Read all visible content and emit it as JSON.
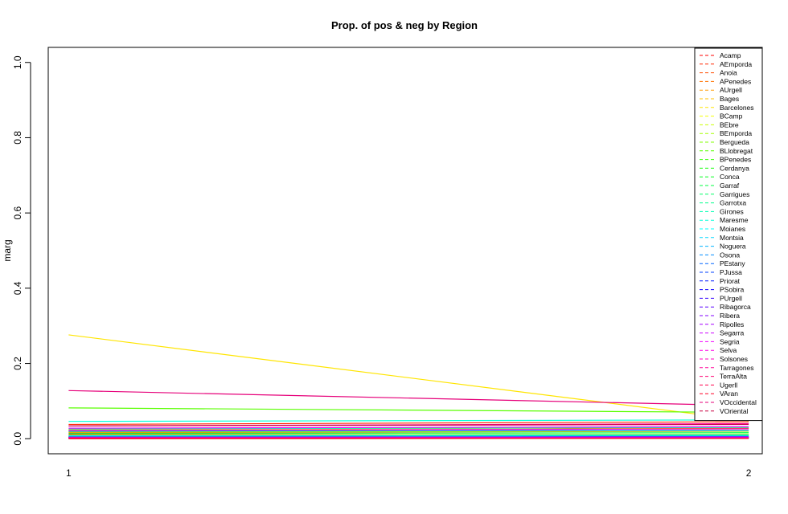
{
  "chart_data": {
    "type": "line",
    "title": "Prop. of pos & neg by Region",
    "xlabel": "",
    "ylabel": "marg",
    "x": [
      1,
      2
    ],
    "x_ticks": [
      "1",
      "2"
    ],
    "y_ticks": [
      "0.0",
      "0.2",
      "0.4",
      "0.6",
      "0.8",
      "1.0"
    ],
    "xlim": [
      0.97,
      2.02
    ],
    "ylim": [
      -0.04,
      1.04
    ],
    "legend_position": "top-right",
    "line_style": "solid",
    "series": [
      {
        "name": "Acamp",
        "color": "#FF0000",
        "values": [
          0.012,
          0.01
        ]
      },
      {
        "name": "AEmporda",
        "color": "#FF2600",
        "values": [
          0.038,
          0.045
        ]
      },
      {
        "name": "Anoia",
        "color": "#FF4D00",
        "values": [
          0.02,
          0.028
        ]
      },
      {
        "name": "APenedes",
        "color": "#FF7300",
        "values": [
          0.016,
          0.02
        ]
      },
      {
        "name": "AUrgell",
        "color": "#FF9900",
        "values": [
          0.006,
          0.008
        ]
      },
      {
        "name": "Bages",
        "color": "#FFBF00",
        "values": [
          0.024,
          0.03
        ]
      },
      {
        "name": "Barcelones",
        "color": "#FFE500",
        "values": [
          0.276,
          0.048
        ]
      },
      {
        "name": "BCamp",
        "color": "#F2FF00",
        "values": [
          0.022,
          0.026
        ]
      },
      {
        "name": "BEbre",
        "color": "#CCFF00",
        "values": [
          0.01,
          0.012
        ]
      },
      {
        "name": "BEmporda",
        "color": "#A6FF00",
        "values": [
          0.018,
          0.02
        ]
      },
      {
        "name": "Bergueda",
        "color": "#80FF00",
        "values": [
          0.004,
          0.005
        ]
      },
      {
        "name": "BLlobregat",
        "color": "#59FF00",
        "values": [
          0.082,
          0.07
        ]
      },
      {
        "name": "BPenedes",
        "color": "#33FF00",
        "values": [
          0.008,
          0.01
        ]
      },
      {
        "name": "Cerdanya",
        "color": "#0DFF00",
        "values": [
          0.003,
          0.004
        ]
      },
      {
        "name": "Conca",
        "color": "#00FF1A",
        "values": [
          0.002,
          0.003
        ]
      },
      {
        "name": "Garraf",
        "color": "#00FF40",
        "values": [
          0.014,
          0.016
        ]
      },
      {
        "name": "Garrigues",
        "color": "#00FF66",
        "values": [
          0.003,
          0.004
        ]
      },
      {
        "name": "Garrotxa",
        "color": "#00FF8C",
        "values": [
          0.006,
          0.008
        ]
      },
      {
        "name": "Girones",
        "color": "#00FFB3",
        "values": [
          0.026,
          0.03
        ]
      },
      {
        "name": "Maresme",
        "color": "#00FFD9",
        "values": [
          0.046,
          0.05
        ]
      },
      {
        "name": "Moianes",
        "color": "#00FFFF",
        "values": [
          0.001,
          0.002
        ]
      },
      {
        "name": "Montsia",
        "color": "#00D9FF",
        "values": [
          0.008,
          0.01
        ]
      },
      {
        "name": "Noguera",
        "color": "#00B3FF",
        "values": [
          0.005,
          0.006
        ]
      },
      {
        "name": "Osona",
        "color": "#008CFF",
        "values": [
          0.02,
          0.022
        ]
      },
      {
        "name": "PEstany",
        "color": "#0066FF",
        "values": [
          0.004,
          0.005
        ]
      },
      {
        "name": "PJussa",
        "color": "#0040FF",
        "values": [
          0.002,
          0.003
        ]
      },
      {
        "name": "Priorat",
        "color": "#001AFF",
        "values": [
          0.001,
          0.002
        ]
      },
      {
        "name": "PSobira",
        "color": "#0D00FF",
        "values": [
          0.001,
          0.002
        ]
      },
      {
        "name": "PUrgell",
        "color": "#3300FF",
        "values": [
          0.004,
          0.005
        ]
      },
      {
        "name": "Ribagorca",
        "color": "#5900FF",
        "values": [
          0.001,
          0.001
        ]
      },
      {
        "name": "Ribera",
        "color": "#8000FF",
        "values": [
          0.003,
          0.004
        ]
      },
      {
        "name": "Ripolles",
        "color": "#A600FF",
        "values": [
          0.004,
          0.005
        ]
      },
      {
        "name": "Segarra",
        "color": "#CC00FF",
        "values": [
          0.003,
          0.004
        ]
      },
      {
        "name": "Segria",
        "color": "#F200FF",
        "values": [
          0.028,
          0.032
        ]
      },
      {
        "name": "Selva",
        "color": "#FF00E6",
        "values": [
          0.022,
          0.026
        ]
      },
      {
        "name": "Solsones",
        "color": "#FF00BF",
        "values": [
          0.002,
          0.002
        ]
      },
      {
        "name": "Tarragones",
        "color": "#FF0099",
        "values": [
          0.034,
          0.04
        ]
      },
      {
        "name": "TerraAlta",
        "color": "#FF0073",
        "values": [
          0.002,
          0.002
        ]
      },
      {
        "name": "Ugerll",
        "color": "#FF004D",
        "values": [
          0.0,
          0.001
        ]
      },
      {
        "name": "VAran",
        "color": "#FF0026",
        "values": [
          0.001,
          0.001
        ]
      },
      {
        "name": "VOccidental",
        "color": "#E6007A",
        "values": [
          0.128,
          0.088
        ]
      },
      {
        "name": "VOriental",
        "color": "#C80040",
        "values": [
          0.034,
          0.038
        ]
      }
    ]
  }
}
